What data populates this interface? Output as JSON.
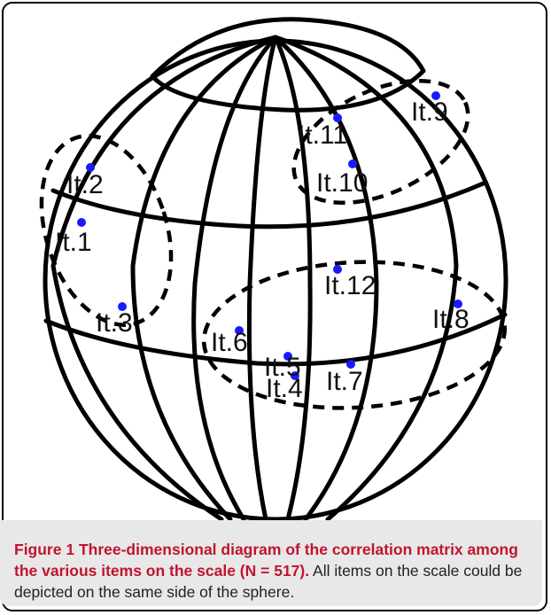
{
  "figure": {
    "caption_label": "Figure 1",
    "caption_title": "Three-dimensional diagram of the correlation matrix among the various items on the scale (N = 517).",
    "caption_body": "All items on the scale could be depicted on the same side of the sphere."
  },
  "items": [
    {
      "label": "It.1"
    },
    {
      "label": "It.2"
    },
    {
      "label": "It.3"
    },
    {
      "label": "It.4"
    },
    {
      "label": "It.5"
    },
    {
      "label": "It.6"
    },
    {
      "label": "It.7"
    },
    {
      "label": "It.8"
    },
    {
      "label": "It.9"
    },
    {
      "label": "It.10"
    },
    {
      "label": "It.11"
    },
    {
      "label": "It.12"
    }
  ],
  "colors": {
    "point": "#1a1aff",
    "line": "#000000",
    "caption_accent": "#c0152f",
    "caption_bg": "#e8e8e8"
  }
}
